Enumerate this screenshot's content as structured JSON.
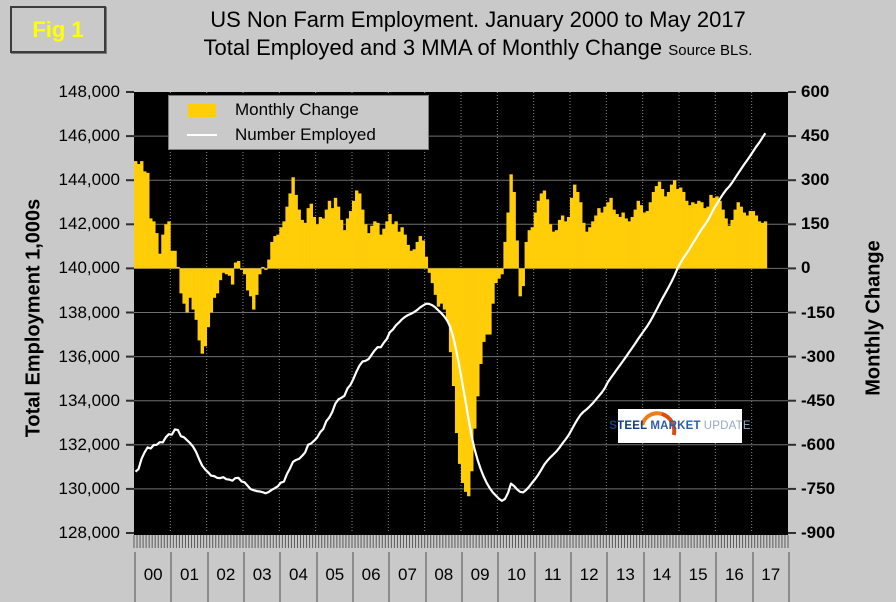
{
  "fig_label": "Fig 1",
  "title": {
    "line1": "US Non Farm Employment. January 2000 to May 2017",
    "line2": "Total Employed and 3 MMA of Monthly Change",
    "source": "Source BLS."
  },
  "watermark": {
    "steel": "STEEL",
    "market": "MARKET",
    "update": "UPDATE"
  },
  "colors": {
    "background": "#C9C9C9",
    "plot_background": "#000000",
    "bar": "#FFCE08",
    "line": "#FFFFFF",
    "grid_horizontal": "#6F6F6F",
    "grid_vertical": "#8A8A8A",
    "fig_label_text": "#FFFF00"
  },
  "chart_data": {
    "type": "combo-bar-line",
    "x_range": "Jan 2000 to May 2017",
    "x_tick_labels": [
      "00",
      "01",
      "02",
      "03",
      "04",
      "05",
      "06",
      "07",
      "08",
      "09",
      "10",
      "11",
      "12",
      "13",
      "14",
      "15",
      "16",
      "17"
    ],
    "grid": "on",
    "legend_position": "top-left",
    "left_axis": {
      "label": "Total Employment 1,000s",
      "min": 128000,
      "max": 148000,
      "step": 2000,
      "tick_labels": [
        "148,000",
        "146,000",
        "144,000",
        "142,000",
        "140,000",
        "138,000",
        "136,000",
        "134,000",
        "132,000",
        "130,000",
        "128,000"
      ]
    },
    "right_axis": {
      "label": "Monthly Change",
      "min": -900,
      "max": 600,
      "step": 150,
      "tick_labels": [
        "600",
        "450",
        "300",
        "150",
        "0",
        "-150",
        "-300",
        "-450",
        "-600",
        "-750",
        "-900"
      ]
    },
    "series": [
      {
        "name": "Monthly Change",
        "type": "bar",
        "axis": "right",
        "color": "#FFCE08",
        "values": [
          365,
          355,
          365,
          330,
          325,
          170,
          160,
          120,
          50,
          115,
          150,
          160,
          60,
          60,
          5,
          -85,
          -120,
          -150,
          -100,
          -140,
          -175,
          -245,
          -290,
          -265,
          -200,
          -150,
          -100,
          -85,
          -40,
          -15,
          -20,
          -25,
          -55,
          20,
          25,
          -5,
          -20,
          -75,
          -95,
          -140,
          -90,
          -20,
          5,
          -5,
          30,
          90,
          110,
          115,
          140,
          160,
          210,
          255,
          310,
          250,
          200,
          165,
          155,
          205,
          220,
          175,
          150,
          175,
          170,
          200,
          230,
          205,
          240,
          210,
          165,
          130,
          170,
          195,
          230,
          265,
          255,
          200,
          150,
          120,
          145,
          160,
          155,
          115,
          135,
          160,
          185,
          150,
          160,
          125,
          140,
          115,
          80,
          60,
          65,
          90,
          110,
          95,
          40,
          -15,
          -50,
          -90,
          -130,
          -120,
          -140,
          -180,
          -285,
          -400,
          -560,
          -665,
          -730,
          -760,
          -775,
          -690,
          -545,
          -435,
          -325,
          -250,
          -225,
          -225,
          -120,
          -50,
          -35,
          -20,
          90,
          190,
          320,
          260,
          95,
          -95,
          -60,
          90,
          130,
          140,
          190,
          230,
          255,
          265,
          235,
          150,
          125,
          130,
          165,
          180,
          160,
          175,
          240,
          285,
          260,
          225,
          155,
          125,
          140,
          160,
          180,
          205,
          190,
          210,
          225,
          240,
          200,
          185,
          175,
          190,
          170,
          160,
          175,
          200,
          230,
          215,
          190,
          195,
          225,
          260,
          280,
          295,
          270,
          245,
          260,
          285,
          300,
          270,
          275,
          260,
          230,
          215,
          225,
          220,
          230,
          225,
          205,
          210,
          250,
          240,
          245,
          230,
          200,
          170,
          145,
          165,
          200,
          225,
          210,
          190,
          180,
          195,
          195,
          180,
          160,
          155,
          160
        ]
      },
      {
        "name": "Number Employed",
        "type": "line",
        "axis": "left",
        "color": "#FFFFFF",
        "values": [
          130780,
          130900,
          131370,
          131660,
          131880,
          131830,
          131990,
          132000,
          132120,
          132110,
          132340,
          132480,
          132460,
          132700,
          132670,
          132390,
          132340,
          132210,
          132080,
          131920,
          131680,
          131350,
          131060,
          130880,
          130750,
          130600,
          130580,
          130500,
          130490,
          130530,
          130440,
          130420,
          130370,
          130490,
          130500,
          130340,
          130300,
          130150,
          129990,
          129940,
          129900,
          129880,
          129850,
          129800,
          129860,
          129960,
          130030,
          130120,
          130280,
          130330,
          130670,
          130920,
          131230,
          131310,
          131360,
          131490,
          131650,
          132000,
          132060,
          132190,
          132330,
          132570,
          132710,
          133070,
          133240,
          133490,
          133860,
          134060,
          134130,
          134220,
          134560,
          134720,
          135000,
          135320,
          135600,
          135780,
          135810,
          135890,
          136090,
          136280,
          136430,
          136420,
          136630,
          136800,
          137100,
          137230,
          137420,
          137540,
          137690,
          137800,
          137880,
          137940,
          138020,
          138110,
          138230,
          138320,
          138400,
          138390,
          138330,
          138230,
          138100,
          137970,
          137820,
          137620,
          137320,
          136870,
          136220,
          135540,
          134750,
          133980,
          133150,
          132400,
          131800,
          131300,
          130900,
          130560,
          130270,
          130030,
          129840,
          129700,
          129560,
          129460,
          129540,
          129800,
          130240,
          130130,
          129980,
          129870,
          129840,
          129950,
          130100,
          130280,
          130450,
          130640,
          130860,
          131100,
          131280,
          131430,
          131560,
          131700,
          131870,
          132060,
          132240,
          132430,
          132670,
          132920,
          133160,
          133360,
          133500,
          133610,
          133740,
          133880,
          134040,
          134210,
          134370,
          134570,
          134840,
          135040,
          135230,
          135420,
          135610,
          135800,
          135990,
          136190,
          136390,
          136590,
          136800,
          137000,
          137190,
          137380,
          137600,
          137850,
          138110,
          138370,
          138630,
          138880,
          139130,
          139390,
          139680,
          140000,
          140250,
          140480,
          140680,
          140890,
          141120,
          141340,
          141570,
          141780,
          141970,
          142180,
          142430,
          142700,
          142920,
          143150,
          143360,
          143550,
          143700,
          143880,
          144090,
          144300,
          144510,
          144710,
          144900,
          145100,
          145310,
          145520,
          145700,
          145920,
          146130
        ]
      }
    ]
  }
}
